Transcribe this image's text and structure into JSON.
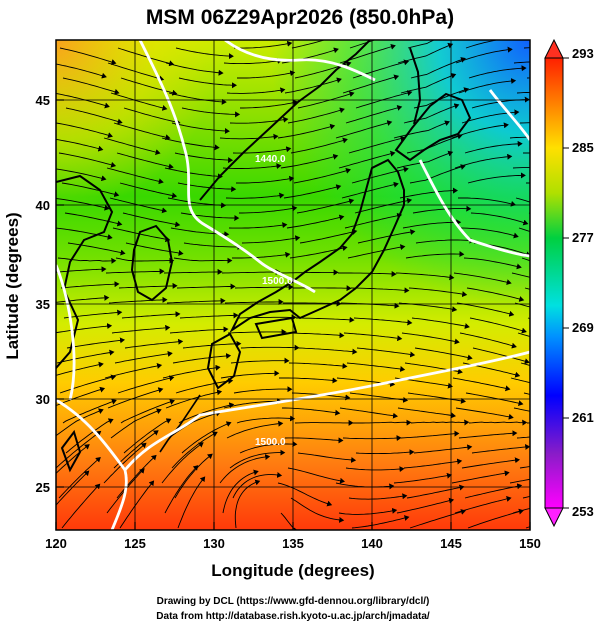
{
  "title": "MSM 06Z29Apr2026 (850.0hPa)",
  "x_axis": {
    "label": "Longitude (degrees)",
    "range": [
      120,
      150
    ],
    "ticks": [
      "120",
      "125",
      "130",
      "135",
      "140",
      "145",
      "150"
    ]
  },
  "y_axis": {
    "label": "Latitude  (degrees)",
    "range": [
      22.5,
      47.6
    ],
    "ticks": [
      "25",
      "30",
      "35",
      "40",
      "45"
    ]
  },
  "colorbar": {
    "ticks": [
      "293",
      "285",
      "277",
      "269",
      "261",
      "253"
    ],
    "range": [
      253,
      293
    ]
  },
  "contour_labels": [
    "1440.0",
    "1500.0",
    "1500.0"
  ],
  "credits": {
    "line1": "Drawing by DCL (https://www.gfd-dennou.org/library/dcl/)",
    "line2": "Data from http://database.rish.kyoto-u.ac.jp/arch/jmadata/"
  }
}
